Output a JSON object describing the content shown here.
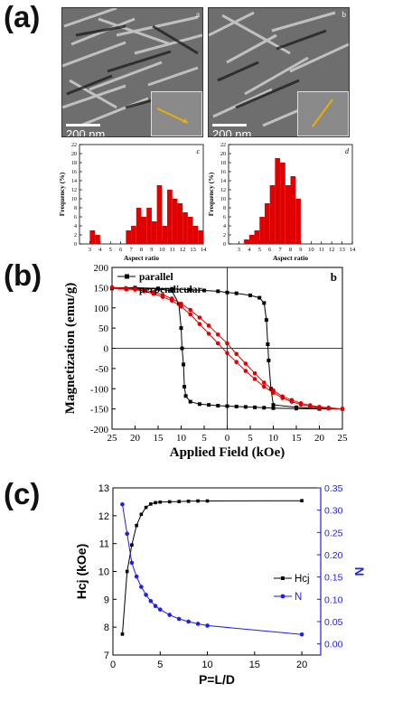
{
  "panels": {
    "a": "(a)",
    "b": "(b)",
    "c": "(c)"
  },
  "tem": {
    "left": {
      "scale": "200 nm",
      "letter": "a"
    },
    "right": {
      "scale": "200 nm",
      "letter": "b"
    }
  },
  "chart_data": [
    {
      "type": "bar",
      "panel_letter": "c",
      "xlabel": "Aspect ratio",
      "ylabel": "Frequency (%)",
      "xlim": [
        2,
        14
      ],
      "ylim": [
        0,
        22
      ],
      "xticks": [
        3,
        4,
        5,
        6,
        7,
        8,
        9,
        10,
        11,
        12,
        13,
        14
      ],
      "yticks": [
        0,
        2,
        4,
        6,
        8,
        10,
        12,
        14,
        16,
        18,
        20,
        22
      ],
      "bar_color": "#e00000",
      "x": [
        3.25,
        3.75,
        6.75,
        7.25,
        7.75,
        8.25,
        8.75,
        9.25,
        9.75,
        10.25,
        10.75,
        11.25,
        11.75,
        12.25,
        12.75,
        13.25,
        13.75
      ],
      "values": [
        3,
        2,
        3,
        4,
        8,
        6,
        8,
        5,
        13,
        4,
        12,
        10,
        9,
        7,
        6,
        4,
        3
      ]
    },
    {
      "type": "bar",
      "panel_letter": "d",
      "xlabel": "Aspect ratio",
      "ylabel": "Frequency (%)",
      "xlim": [
        2,
        14
      ],
      "ylim": [
        0,
        22
      ],
      "xticks": [
        3,
        4,
        5,
        6,
        7,
        8,
        9,
        10,
        11,
        12,
        13,
        14
      ],
      "yticks": [
        0,
        2,
        4,
        6,
        8,
        10,
        12,
        14,
        16,
        18,
        20,
        22
      ],
      "bar_color": "#e00000",
      "x": [
        3.75,
        4.25,
        4.75,
        5.25,
        5.75,
        6.25,
        6.75,
        7.25,
        7.75,
        8.25,
        8.75
      ],
      "values": [
        1,
        2,
        3,
        6,
        9,
        13,
        19,
        18,
        13,
        15,
        10
      ]
    },
    {
      "type": "line",
      "panel_letter": "b",
      "xlabel": "Applied Field (kOe)",
      "ylabel": "Magnetization (emu/g)",
      "xlim": [
        25,
        -25
      ],
      "ylim": [
        -200,
        200
      ],
      "xtick_labels": [
        "25",
        "20",
        "15",
        "10",
        "5",
        "0",
        "5",
        "10",
        "15",
        "20",
        "25"
      ],
      "yticks": [
        -200,
        -150,
        -100,
        -50,
        0,
        50,
        100,
        150,
        200
      ],
      "legend_position": "top-left",
      "series": [
        {
          "name": "parallel",
          "color": "#000000",
          "marker": "square",
          "x": [
            25,
            20,
            15,
            12,
            10.5,
            10,
            9.8,
            9.5,
            9.3,
            9,
            8,
            6,
            4,
            2,
            0,
            -2,
            -4,
            -6,
            -8,
            -10,
            -15,
            -20,
            -25,
            -20,
            -15,
            -10,
            -9.5,
            -9,
            -8.8,
            -8.5,
            -8,
            -7,
            -5,
            -2,
            0,
            2,
            5,
            8,
            12,
            15,
            20,
            25
          ],
          "y": [
            148,
            148,
            147,
            142,
            110,
            50,
            0,
            -40,
            -95,
            -118,
            -132,
            -138,
            -140,
            -142,
            -143,
            -144,
            -145,
            -146,
            -147,
            -148,
            -149,
            -150,
            -150,
            -149,
            -146,
            -140,
            -100,
            -30,
            10,
            70,
            112,
            125,
            131,
            136,
            138,
            141,
            143,
            145,
            147,
            148,
            150,
            150
          ]
        },
        {
          "name": "perpendicular",
          "color": "#e00000",
          "marker": "circle",
          "x": [
            25,
            22,
            20,
            18,
            16,
            14,
            12,
            10,
            8,
            6,
            4,
            2,
            0,
            -2,
            -4,
            -6,
            -8,
            -10,
            -12,
            -14,
            -16,
            -18,
            -20,
            -22,
            -25,
            -22,
            -20,
            -18,
            -16,
            -14,
            -12,
            -10,
            -8,
            -6,
            -4,
            -2,
            0,
            2,
            4,
            6,
            8,
            10,
            12,
            14,
            16,
            18,
            20,
            22,
            25
          ],
          "y": [
            150,
            147,
            145,
            141,
            135,
            127,
            118,
            103,
            84,
            60,
            36,
            12,
            -12,
            -34,
            -56,
            -76,
            -95,
            -110,
            -123,
            -132,
            -139,
            -144,
            -147,
            -149,
            -150,
            -147,
            -145,
            -141,
            -136,
            -128,
            -119,
            -104,
            -85,
            -62,
            -38,
            -14,
            12,
            34,
            56,
            76,
            95,
            110,
            123,
            132,
            139,
            144,
            147,
            149,
            150
          ]
        }
      ]
    },
    {
      "type": "line",
      "xlabel": "P=L/D",
      "ylabel_left": "Hcj (kOe)",
      "ylabel_right": "N",
      "xlim": [
        0,
        22
      ],
      "ylim_left": [
        7,
        13
      ],
      "ylim_right": [
        -0.025,
        0.35
      ],
      "xticks": [
        0,
        5,
        10,
        15,
        20
      ],
      "yticks_left": [
        7,
        8,
        9,
        10,
        11,
        12,
        13
      ],
      "yticks_right": [
        0.0,
        0.05,
        0.1,
        0.15,
        0.2,
        0.25,
        0.3,
        0.35
      ],
      "legend_position": "right",
      "series": [
        {
          "name": "Hcj",
          "axis": "left",
          "color": "#000000",
          "marker": "square",
          "x": [
            1,
            1.5,
            2,
            2.5,
            3,
            3.5,
            4,
            4.5,
            5,
            6,
            7,
            8,
            9,
            10,
            20
          ],
          "y": [
            7.75,
            10.0,
            10.95,
            11.65,
            12.05,
            12.3,
            12.42,
            12.47,
            12.49,
            12.5,
            12.51,
            12.52,
            12.53,
            12.53,
            12.54
          ]
        },
        {
          "name": "N",
          "axis": "right",
          "color": "#1f1fe6",
          "marker": "circle",
          "x": [
            1,
            1.5,
            2,
            2.5,
            3,
            3.5,
            4,
            4.5,
            5,
            6,
            7,
            8,
            9,
            10,
            20
          ],
          "y": [
            0.313,
            0.247,
            0.182,
            0.151,
            0.128,
            0.11,
            0.096,
            0.085,
            0.077,
            0.065,
            0.056,
            0.05,
            0.045,
            0.041,
            0.021
          ]
        }
      ]
    }
  ]
}
